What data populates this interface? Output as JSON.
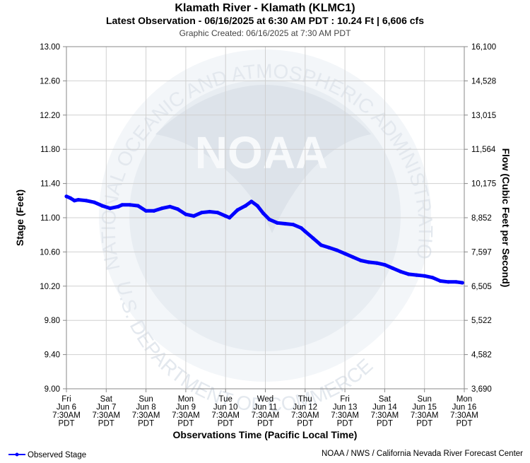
{
  "chart_data": {
    "type": "line",
    "title": "Klamath River - Klamath (KLMC1)",
    "subtitle": "Latest Observation - 06/16/2025 at 6:30 AM PDT : 10.24 Ft | 6,606 cfs",
    "created": "Graphic Created: 06/16/2025 at 7:30 AM PDT",
    "xlabel": "Observations Time (Pacific Local Time)",
    "ylabel": "Stage (Feet)",
    "y2label": "Flow (Cubic Feet per Second)",
    "ylim": [
      9.0,
      13.0
    ],
    "xlim": [
      0,
      10
    ],
    "grid": true,
    "yticks": [
      "13.00",
      "12.60",
      "12.20",
      "11.80",
      "11.40",
      "11.00",
      "10.60",
      "10.20",
      "9.80",
      "9.40",
      "9.00"
    ],
    "y2ticks": [
      "16,100",
      "14,528",
      "13,015",
      "11,564",
      "10,175",
      "8,852",
      "7,597",
      "6,505",
      "5,522",
      "4,582",
      "3,690"
    ],
    "xticks": [
      {
        "day": "Fri",
        "date": "Jun 6",
        "time": "7:30AM",
        "tz": "PDT"
      },
      {
        "day": "Sat",
        "date": "Jun 7",
        "time": "7:30AM",
        "tz": "PDT"
      },
      {
        "day": "Sun",
        "date": "Jun 8",
        "time": "7:30AM",
        "tz": "PDT"
      },
      {
        "day": "Mon",
        "date": "Jun 9",
        "time": "7:30AM",
        "tz": "PDT"
      },
      {
        "day": "Tue",
        "date": "Jun 10",
        "time": "7:30AM",
        "tz": "PDT"
      },
      {
        "day": "Wed",
        "date": "Jun 11",
        "time": "7:30AM",
        "tz": "PDT"
      },
      {
        "day": "Thu",
        "date": "Jun 12",
        "time": "7:30AM",
        "tz": "PDT"
      },
      {
        "day": "Fri",
        "date": "Jun 13",
        "time": "7:30AM",
        "tz": "PDT"
      },
      {
        "day": "Sat",
        "date": "Jun 14",
        "time": "7:30AM",
        "tz": "PDT"
      },
      {
        "day": "Sun",
        "date": "Jun 15",
        "time": "7:30AM",
        "tz": "PDT"
      },
      {
        "day": "Mon",
        "date": "Jun 16",
        "time": "7:30AM",
        "tz": "PDT"
      }
    ],
    "series": [
      {
        "name": "Observed Stage",
        "color": "#0000ff",
        "x": [
          0,
          0.1,
          0.2,
          0.3,
          0.5,
          0.7,
          0.9,
          1.1,
          1.3,
          1.4,
          1.6,
          1.8,
          2.0,
          2.2,
          2.4,
          2.6,
          2.8,
          3.0,
          3.2,
          3.4,
          3.6,
          3.8,
          4.0,
          4.1,
          4.3,
          4.5,
          4.65,
          4.8,
          4.95,
          5.1,
          5.3,
          5.5,
          5.7,
          5.9,
          6.0,
          6.2,
          6.4,
          6.6,
          6.8,
          7.0,
          7.2,
          7.4,
          7.6,
          7.8,
          8.0,
          8.2,
          8.4,
          8.6,
          8.8,
          9.0,
          9.2,
          9.4,
          9.6,
          9.8,
          9.95
        ],
        "values": [
          11.25,
          11.23,
          11.2,
          11.21,
          11.2,
          11.18,
          11.14,
          11.11,
          11.13,
          11.15,
          11.15,
          11.14,
          11.08,
          11.08,
          11.11,
          11.13,
          11.1,
          11.04,
          11.02,
          11.06,
          11.07,
          11.06,
          11.02,
          11.0,
          11.09,
          11.14,
          11.19,
          11.14,
          11.05,
          10.98,
          10.94,
          10.93,
          10.92,
          10.88,
          10.84,
          10.76,
          10.68,
          10.65,
          10.62,
          10.58,
          10.54,
          10.5,
          10.48,
          10.47,
          10.45,
          10.41,
          10.37,
          10.34,
          10.33,
          10.32,
          10.3,
          10.26,
          10.25,
          10.25,
          10.24
        ]
      }
    ],
    "legend": "bottom-left",
    "credit": "NOAA / NWS / California Nevada River Forecast Center",
    "watermark": "NATIONAL OCEANIC AND ATMOSPHERIC ADMINISTRATION U.S. DEPARTMENT OF COMMERCE",
    "watermark_logo": "NOAA"
  }
}
